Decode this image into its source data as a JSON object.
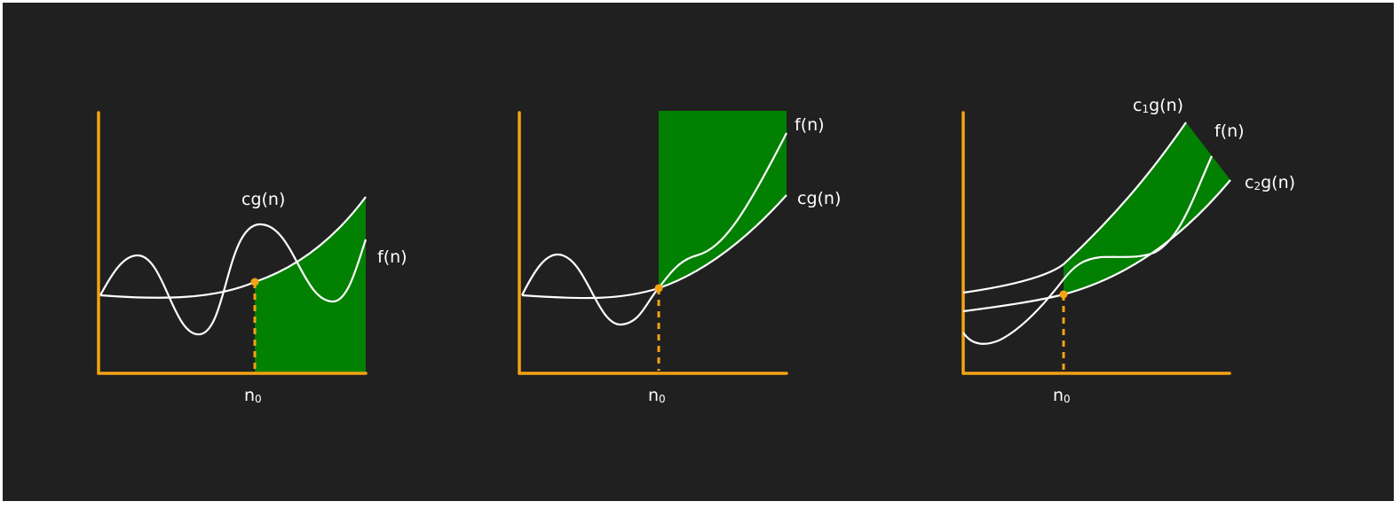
{
  "colors": {
    "background": "#202020",
    "axis": "#f5a213",
    "region": "#028001",
    "curve": "#ffffff"
  },
  "panels": [
    {
      "notation": "Big-O",
      "labels": {
        "upper": "cg(n)",
        "lower": "f(n)",
        "threshold": "n",
        "threshold_sub": "0"
      }
    },
    {
      "notation": "Big-Omega",
      "labels": {
        "upper": "f(n)",
        "lower": "cg(n)",
        "threshold": "n",
        "threshold_sub": "0"
      }
    },
    {
      "notation": "Big-Theta",
      "labels": {
        "c1g_main": "c",
        "c1g_sub": "1",
        "c1g_rest": "g(n)",
        "f": "f(n)",
        "c2g_main": "c",
        "c2g_sub": "2",
        "c2g_rest": "g(n)",
        "threshold": "n",
        "threshold_sub": "0"
      }
    }
  ]
}
